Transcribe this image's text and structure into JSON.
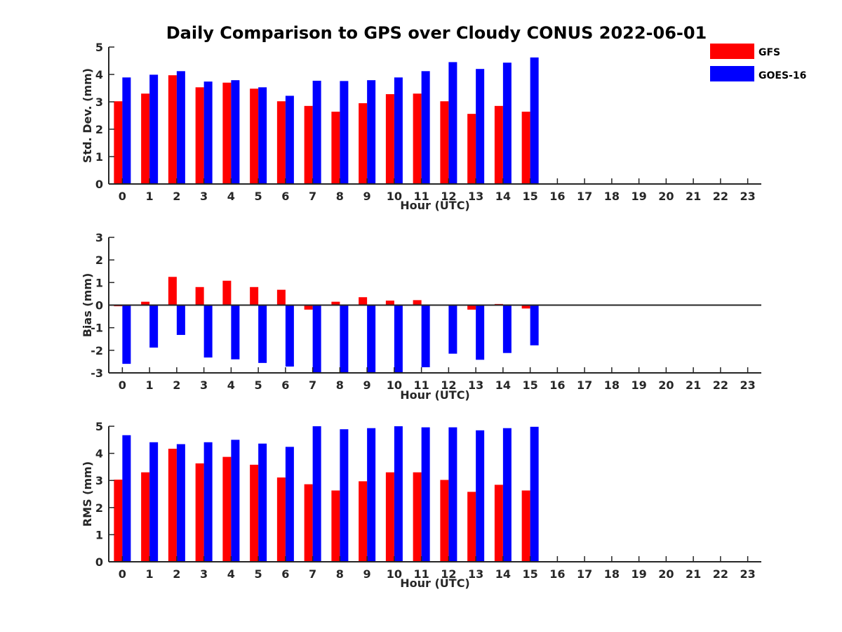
{
  "title": "Daily Comparison to GPS over Cloudy CONUS 2022-06-01",
  "colors": {
    "GFS": "#ff0000",
    "GOES-16": "#0000ff",
    "axis": "#262626"
  },
  "legend": {
    "placement": "top-right",
    "items": [
      "GFS",
      "GOES-16"
    ]
  },
  "chart_data": [
    {
      "type": "bar",
      "ylabel": "Std. Dev. (mm)",
      "xlabel": "Hour (UTC)",
      "categories": [
        "0",
        "1",
        "2",
        "3",
        "4",
        "5",
        "6",
        "7",
        "8",
        "9",
        "10",
        "11",
        "12",
        "13",
        "14",
        "15",
        "16",
        "17",
        "18",
        "19",
        "20",
        "21",
        "22",
        "23"
      ],
      "ylim": [
        0,
        5
      ],
      "yticks": [
        0,
        1,
        2,
        3,
        4,
        5
      ],
      "grid": false,
      "series": [
        {
          "name": "GFS",
          "values": [
            3.02,
            3.3,
            3.97,
            3.53,
            3.7,
            3.48,
            3.02,
            2.85,
            2.64,
            2.95,
            3.28,
            3.3,
            3.02,
            2.56,
            2.85,
            2.64,
            null,
            null,
            null,
            null,
            null,
            null,
            null,
            null
          ]
        },
        {
          "name": "GOES-16",
          "values": [
            3.89,
            3.99,
            4.12,
            3.74,
            3.79,
            3.53,
            3.22,
            3.77,
            3.76,
            3.79,
            3.89,
            4.12,
            4.45,
            4.2,
            4.43,
            4.62,
            null,
            null,
            null,
            null,
            null,
            null,
            null,
            null
          ]
        }
      ]
    },
    {
      "type": "bar",
      "ylabel": "Bias (mm)",
      "xlabel": "Hour (UTC)",
      "categories": [
        "0",
        "1",
        "2",
        "3",
        "4",
        "5",
        "6",
        "7",
        "8",
        "9",
        "10",
        "11",
        "12",
        "13",
        "14",
        "15",
        "16",
        "17",
        "18",
        "19",
        "20",
        "21",
        "22",
        "23"
      ],
      "ylim": [
        -3,
        3
      ],
      "yticks": [
        -3,
        -2,
        -1,
        0,
        1,
        2,
        3
      ],
      "grid": false,
      "series": [
        {
          "name": "GFS",
          "values": [
            -0.05,
            0.15,
            1.25,
            0.8,
            1.08,
            0.8,
            0.68,
            -0.2,
            0.15,
            0.35,
            0.2,
            0.22,
            -0.03,
            -0.2,
            0.05,
            -0.15,
            null,
            null,
            null,
            null,
            null,
            null,
            null,
            null
          ]
        },
        {
          "name": "GOES-16",
          "values": [
            -2.6,
            -1.88,
            -1.32,
            -2.32,
            -2.4,
            -2.56,
            -2.72,
            -3.0,
            -3.0,
            -3.0,
            -3.0,
            -2.75,
            -2.15,
            -2.42,
            -2.12,
            -1.78,
            null,
            null,
            null,
            null,
            null,
            null,
            null,
            null
          ]
        }
      ]
    },
    {
      "type": "bar",
      "ylabel": "RMS (mm)",
      "xlabel": "Hour (UTC)",
      "categories": [
        "0",
        "1",
        "2",
        "3",
        "4",
        "5",
        "6",
        "7",
        "8",
        "9",
        "10",
        "11",
        "12",
        "13",
        "14",
        "15",
        "16",
        "17",
        "18",
        "19",
        "20",
        "21",
        "22",
        "23"
      ],
      "ylim": [
        0,
        5
      ],
      "yticks": [
        0,
        1,
        2,
        3,
        4,
        5
      ],
      "grid": false,
      "series": [
        {
          "name": "GFS",
          "values": [
            3.03,
            3.3,
            4.17,
            3.63,
            3.87,
            3.58,
            3.11,
            2.86,
            2.63,
            2.97,
            3.3,
            3.3,
            3.02,
            2.58,
            2.84,
            2.63,
            null,
            null,
            null,
            null,
            null,
            null,
            null,
            null
          ]
        },
        {
          "name": "GOES-16",
          "values": [
            4.67,
            4.41,
            4.34,
            4.41,
            4.5,
            4.36,
            4.24,
            5.0,
            4.89,
            4.93,
            5.0,
            4.96,
            4.96,
            4.85,
            4.93,
            4.98,
            null,
            null,
            null,
            null,
            null,
            null,
            null,
            null
          ]
        }
      ]
    }
  ]
}
